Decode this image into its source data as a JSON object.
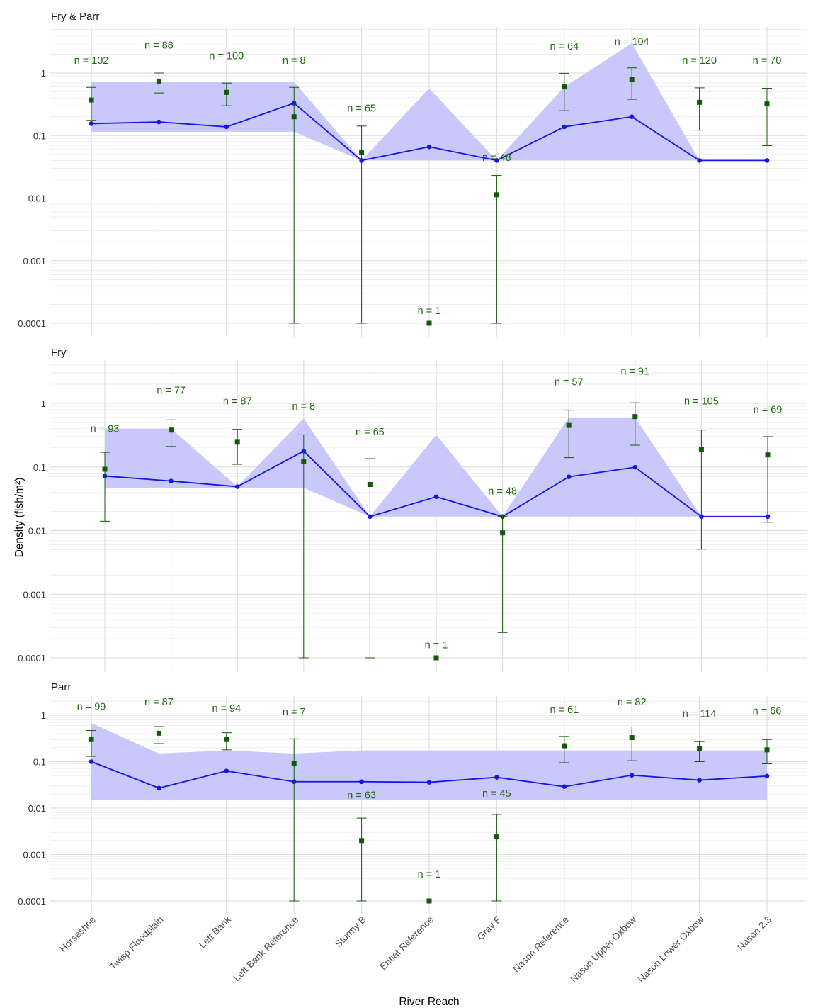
{
  "chart_data": {
    "type": "line",
    "xlabel": "River Reach",
    "ylabel": "Density (fish/m²)",
    "y_scale": "log",
    "ylim": [
      0.0001,
      4
    ],
    "y_ticks": [
      "0.0001",
      "0.001",
      "0.01",
      "0.1",
      "1"
    ],
    "grid": true,
    "categories": [
      "Horseshoe",
      "Twisp Floodplain",
      "Left Bank",
      "Left Bank Reference",
      "Stormy B",
      "Entiat Reference",
      "Gray F",
      "Nason Reference",
      "Nason Upper Oxbow",
      "Nason Lower Oxbow",
      "Nason 2.3"
    ],
    "colors": {
      "model_line": "#1515e8",
      "model_band": "#c8c8fb",
      "observed": "#14580b",
      "n_label": "#1f6b10",
      "grid": "#dadada"
    },
    "panels": [
      {
        "title": "Fry & Parr",
        "model": [
          0.155,
          0.165,
          0.138,
          0.33,
          0.04,
          0.066,
          0.04,
          0.138,
          0.2,
          0.04,
          0.04
        ],
        "band_lower": [
          0.115,
          0.115,
          0.115,
          0.115,
          0.04,
          0.04,
          0.04,
          0.04,
          0.04,
          0.04,
          null
        ],
        "band_upper": [
          0.72,
          0.72,
          0.72,
          0.72,
          0.04,
          0.57,
          0.04,
          0.6,
          3.0,
          0.04,
          null
        ],
        "observed": [
          0.37,
          0.73,
          0.49,
          0.2,
          0.054,
          0.0001,
          0.0113,
          0.6,
          0.8,
          0.34,
          0.32
        ],
        "obs_lower": [
          0.175,
          0.48,
          0.3,
          0.0001,
          0.0001,
          null,
          0.0001,
          0.25,
          0.38,
          0.122,
          0.069
        ],
        "obs_upper": [
          0.59,
          1.0,
          0.69,
          0.59,
          0.142,
          null,
          0.023,
          0.99,
          1.21,
          0.58,
          0.57
        ],
        "n": [
          "n = 102",
          "n = 88",
          "n = 100",
          "n = 8",
          "n = 65",
          "n = 1",
          "n = 48",
          "n = 64",
          "n = 104",
          "n = 120",
          "n = 70"
        ],
        "n_value": [
          1.6,
          2.8,
          1.9,
          1.6,
          0.275,
          0.00016,
          0.045,
          2.7,
          3.2,
          1.6,
          1.6
        ]
      },
      {
        "title": "Fry",
        "model": [
          0.072,
          0.06,
          0.049,
          0.178,
          0.0166,
          0.034,
          0.0166,
          0.07,
          0.099,
          0.0166,
          0.0166
        ],
        "band_lower": [
          0.047,
          0.047,
          0.047,
          0.047,
          0.0166,
          0.0166,
          0.0166,
          0.0166,
          0.0166,
          0.0166,
          null
        ],
        "band_upper": [
          0.4,
          0.4,
          0.049,
          0.58,
          0.0166,
          0.32,
          0.0166,
          0.6,
          0.6,
          0.0166,
          null
        ],
        "observed": [
          0.092,
          0.38,
          0.245,
          0.122,
          0.053,
          0.0001,
          0.0092,
          0.45,
          0.62,
          0.19,
          0.155
        ],
        "obs_lower": [
          0.014,
          0.21,
          0.11,
          0.0001,
          0.0001,
          null,
          0.00025,
          0.14,
          0.22,
          0.0051,
          0.0135
        ],
        "obs_upper": [
          0.17,
          0.55,
          0.39,
          0.32,
          0.135,
          null,
          0.0166,
          0.78,
          1.02,
          0.38,
          0.3
        ],
        "n": [
          "n = 93",
          "n = 77",
          "n = 87",
          "n = 8",
          "n = 65",
          "n = 1",
          "n = 48",
          "n = 57",
          "n = 91",
          "n = 105",
          "n = 69"
        ],
        "n_value": [
          0.4,
          1.6,
          1.1,
          0.9,
          0.36,
          0.00016,
          0.042,
          2.2,
          3.2,
          1.1,
          0.8
        ]
      },
      {
        "title": "Parr",
        "model": [
          0.1,
          0.027,
          0.063,
          0.037,
          0.037,
          0.036,
          0.046,
          0.029,
          0.051,
          0.04,
          0.049
        ],
        "band_lower": [
          0.015,
          0.015,
          0.015,
          0.015,
          0.015,
          0.015,
          0.015,
          0.015,
          0.015,
          0.015,
          0.015
        ],
        "band_upper": [
          0.68,
          0.15,
          0.175,
          0.15,
          0.175,
          0.175,
          0.175,
          0.175,
          0.175,
          0.175,
          0.175
        ],
        "observed": [
          0.3,
          0.41,
          0.3,
          0.093,
          0.002,
          0.0001,
          0.0024,
          0.22,
          0.33,
          0.19,
          0.18
        ],
        "obs_lower": [
          0.13,
          0.245,
          0.18,
          0.0001,
          0.0001,
          null,
          0.0001,
          0.095,
          0.105,
          0.1,
          0.09
        ],
        "obs_upper": [
          0.47,
          0.57,
          0.42,
          0.31,
          0.0061,
          null,
          0.0073,
          0.35,
          0.56,
          0.27,
          0.3
        ],
        "n": [
          "n = 99",
          "n = 87",
          "n = 94",
          "n = 7",
          "n = 63",
          "n = 1",
          "n = 45",
          "n = 61",
          "n = 82",
          "n = 114",
          "n = 66"
        ],
        "n_value": [
          1.55,
          1.95,
          1.42,
          1.2,
          0.019,
          0.00038,
          0.021,
          1.32,
          1.95,
          1.1,
          1.26
        ]
      }
    ]
  }
}
